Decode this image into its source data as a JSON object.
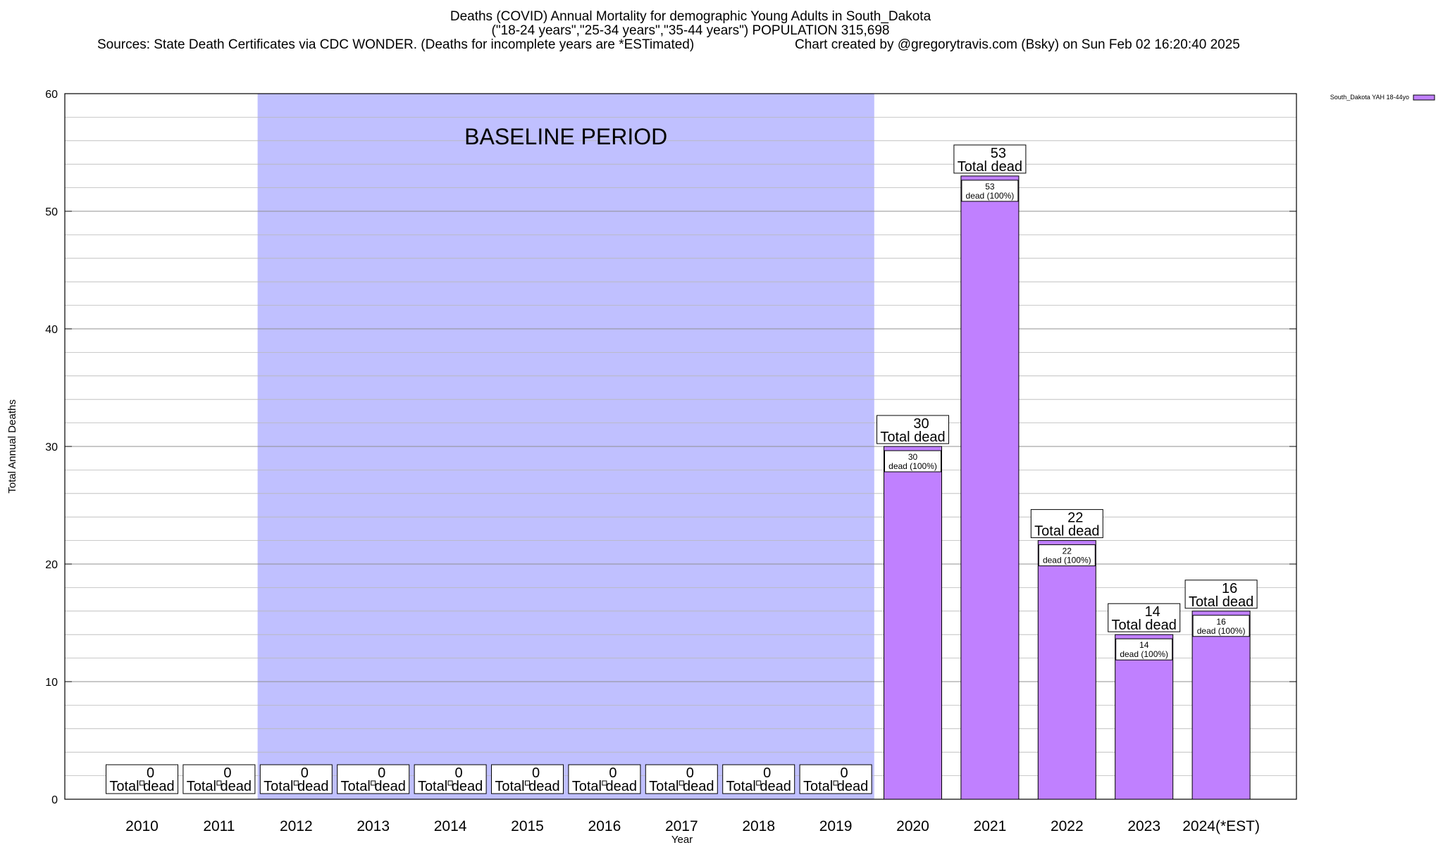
{
  "header": {
    "title": "Deaths (COVID) Annual Mortality for demographic Young Adults in South_Dakota",
    "subtitle": "(\"18-24 years\",\"25-34 years\",\"35-44 years\") POPULATION 315,698",
    "sources": "Sources: State Death Certificates via CDC WONDER. (Deaths for incomplete years are *ESTimated)",
    "credit": "Chart created by @gregorytravis.com (Bsky) on Sun Feb 02 16:20:40 2025"
  },
  "chart_data": {
    "type": "bar",
    "title": "Deaths (COVID) Annual Mortality for demographic Young Adults in South_Dakota",
    "xlabel": "Year",
    "ylabel": "Total Annual Deaths",
    "ylim": [
      0,
      60
    ],
    "yticks": [
      0,
      10,
      20,
      30,
      40,
      50,
      60
    ],
    "grid": true,
    "legend_position": "top-right",
    "categories": [
      "2010",
      "2011",
      "2012",
      "2013",
      "2014",
      "2015",
      "2016",
      "2017",
      "2018",
      "2019",
      "2020",
      "2021",
      "2022",
      "2023",
      "2024(*EST)"
    ],
    "series": [
      {
        "name": "South_Dakota YAH 18-44yo",
        "color": "#c080ff",
        "values": [
          0,
          0,
          0,
          0,
          0,
          0,
          0,
          0,
          0,
          0,
          30,
          53,
          22,
          14,
          16
        ]
      }
    ],
    "total_label_suffix": "Total dead",
    "inner_label_suffix": "dead (100%)",
    "baseline": {
      "label": "BASELINE PERIOD",
      "from": "2012",
      "to": "2019",
      "color": "#c0c0ff"
    }
  }
}
